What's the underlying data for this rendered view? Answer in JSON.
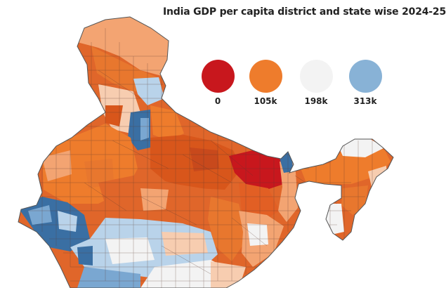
{
  "title": "India GDP per capita district and state wise 2024-25",
  "legend": [
    {
      "label": "0",
      "color": "#c8171d"
    },
    {
      "label": "105k",
      "color": "#ee7c2c"
    },
    {
      "label": "198k",
      "color": "#f3f3f3"
    },
    {
      "label": "313k",
      "color": "#88b2d6"
    }
  ],
  "colors": {
    "deep_red": "#c8171d",
    "dark_orange": "#d8561b",
    "orange": "#ee7c2c",
    "light_orange": "#f3a472",
    "peach": "#f7cdb0",
    "near_white": "#f3f3f3",
    "light_blue": "#b9d3ea",
    "mid_blue": "#7aa7d1",
    "dark_blue": "#3a6fa3",
    "border": "#6a4a40"
  }
}
